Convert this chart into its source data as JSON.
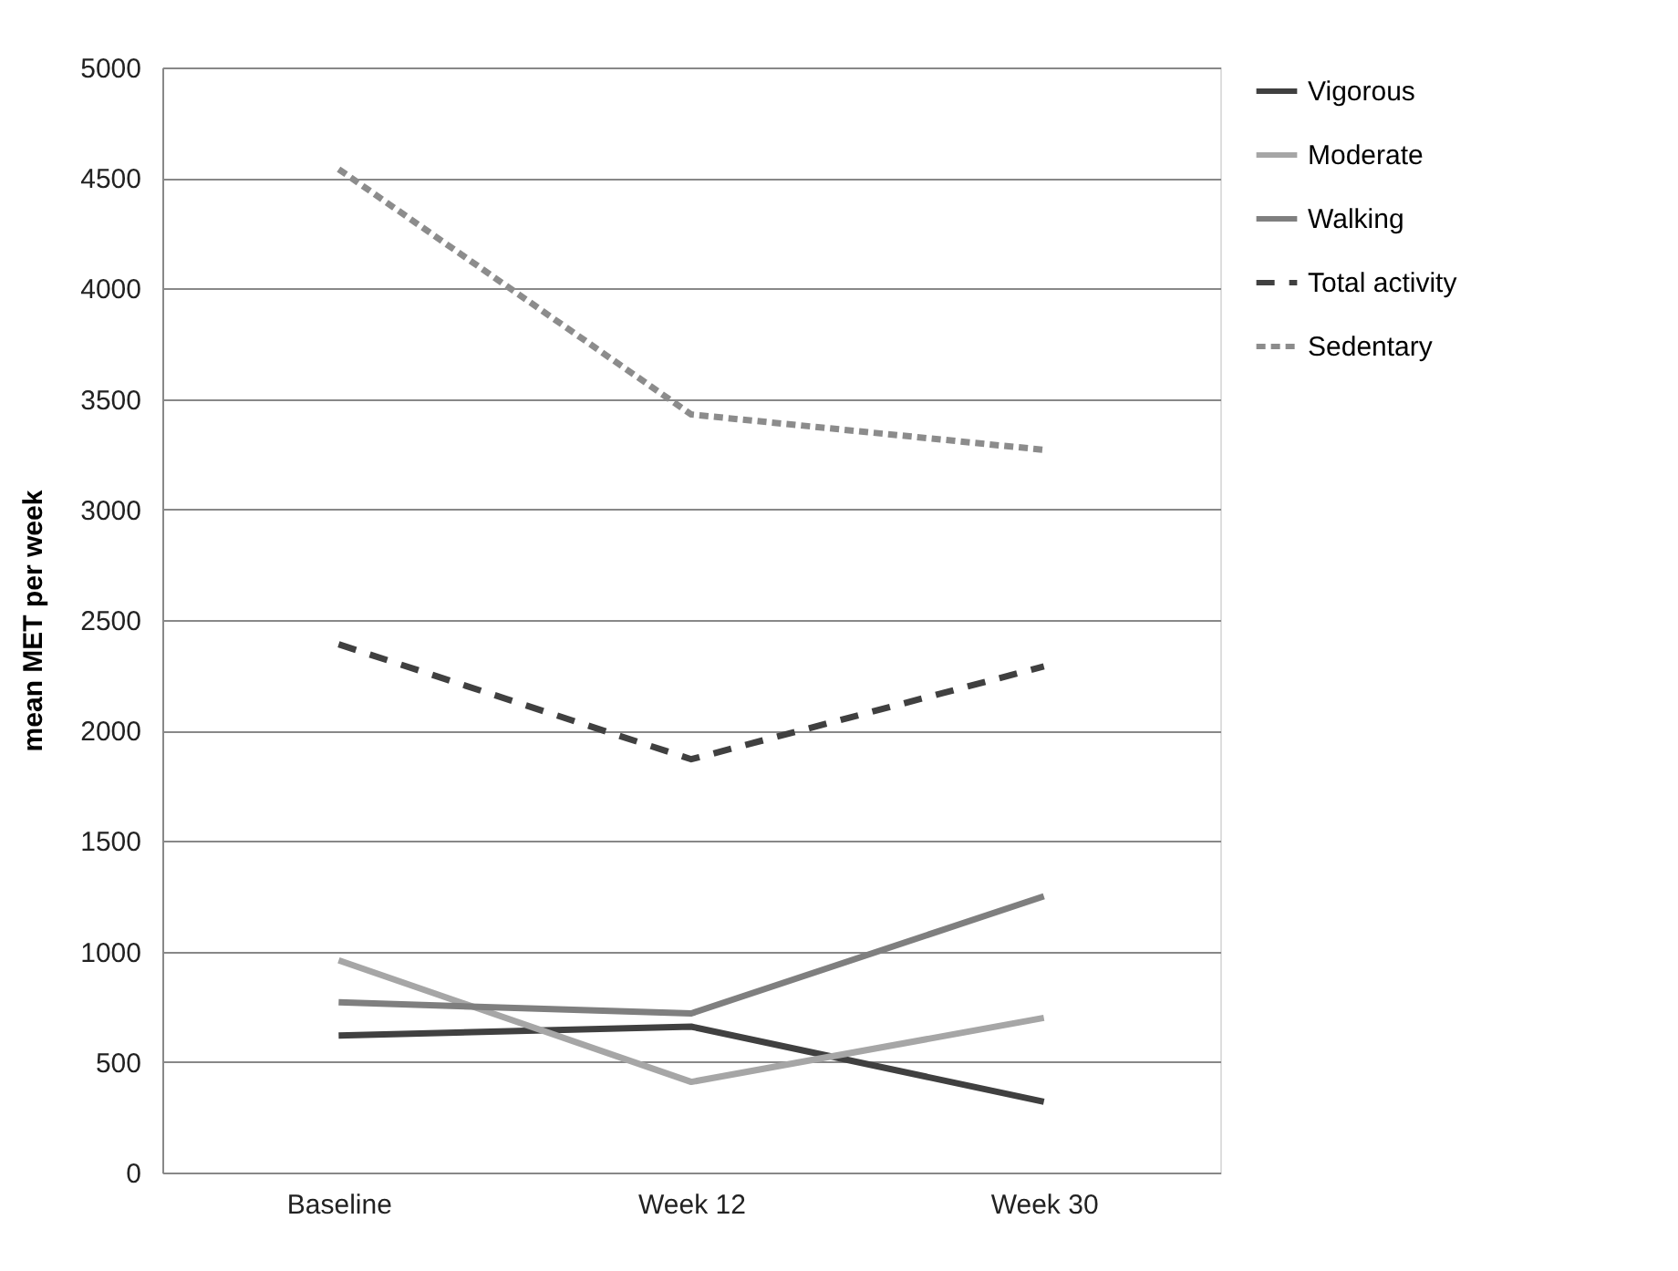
{
  "chart_data": {
    "type": "line",
    "ylabel": "mean MET per week",
    "categories": [
      "Baseline",
      "Week 12",
      "Week 30"
    ],
    "ylim": [
      0,
      5000
    ],
    "yticks": [
      0,
      500,
      1000,
      1500,
      2000,
      2500,
      3000,
      3500,
      4000,
      4500,
      5000
    ],
    "grid": "y",
    "legend": "right",
    "marker": "none",
    "series": [
      {
        "name": "Vigorous",
        "color": "#404040",
        "line_style": "solid",
        "values": [
          620,
          660,
          320
        ]
      },
      {
        "name": "Moderate",
        "color": "#a6a6a6",
        "line_style": "solid",
        "values": [
          960,
          410,
          700
        ]
      },
      {
        "name": "Walking",
        "color": "#7f7f7f",
        "line_style": "solid",
        "values": [
          770,
          720,
          1250
        ]
      },
      {
        "name": "Total activity",
        "color": "#404040",
        "line_style": "dashed",
        "values": [
          2390,
          1870,
          2290
        ]
      },
      {
        "name": "Sedentary",
        "color": "#8c8c8c",
        "line_style": "dotted",
        "values": [
          4540,
          3430,
          3270
        ]
      }
    ]
  }
}
